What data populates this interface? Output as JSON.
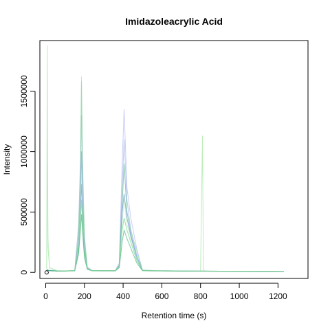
{
  "chart_data": {
    "type": "line",
    "title": "Imidazoleacrylic Acid",
    "xlabel": "Retention time (s)",
    "ylabel": "Intensity",
    "xlim": [
      -30,
      1355
    ],
    "ylim": [
      -50000,
      1920000
    ],
    "x_ticks": [
      0,
      200,
      400,
      600,
      800,
      1000,
      1200
    ],
    "x_tick_labels": [
      "0",
      "200",
      "400",
      "600",
      "800",
      "1000",
      "1200"
    ],
    "y_ticks": [
      0,
      500000,
      1000000,
      1500000
    ],
    "y_tick_labels": [
      "0",
      "500000",
      "1000000",
      "1500000"
    ],
    "grid": false,
    "legend": "none",
    "marker_point": {
      "x": 5,
      "y": 0
    },
    "series_style": {
      "colors": [
        "#9aa6ee",
        "#8aa0e6",
        "#3f6fc9",
        "#5a86d8",
        "#7fe07f",
        "#3fcc60",
        "#1a9e55",
        "#b0e8b0"
      ],
      "opacity": 0.55
    },
    "series": [
      {
        "color": "#9aa6ee",
        "x": [
          5,
          20,
          60,
          100,
          150,
          170,
          180,
          185,
          190,
          200,
          215,
          240,
          300,
          360,
          380,
          395,
          405,
          420,
          440,
          470,
          500,
          560,
          700,
          900,
          1100,
          1230
        ],
        "y": [
          20000,
          15000,
          12000,
          12000,
          15000,
          400000,
          950000,
          1580000,
          900000,
          300000,
          40000,
          15000,
          15000,
          15000,
          80000,
          900000,
          1350000,
          700000,
          450000,
          200000,
          20000,
          15000,
          12000,
          10000,
          10000,
          8000
        ]
      },
      {
        "color": "#8aa0e6",
        "x": [
          5,
          20,
          60,
          100,
          150,
          170,
          180,
          185,
          190,
          200,
          215,
          240,
          300,
          360,
          380,
          395,
          405,
          420,
          440,
          470,
          500,
          560,
          700,
          900,
          1100,
          1230
        ],
        "y": [
          25000,
          16000,
          13000,
          12000,
          16000,
          300000,
          800000,
          1300000,
          700000,
          250000,
          35000,
          16000,
          14000,
          14000,
          60000,
          700000,
          1100000,
          600000,
          350000,
          150000,
          18000,
          14000,
          12000,
          10000,
          9000,
          8000
        ]
      },
      {
        "color": "#3f6fc9",
        "x": [
          5,
          20,
          60,
          100,
          150,
          170,
          180,
          185,
          190,
          200,
          215,
          240,
          300,
          360,
          380,
          395,
          405,
          420,
          440,
          470,
          500,
          560,
          700,
          900,
          1100,
          1230
        ],
        "y": [
          18000,
          14000,
          12000,
          11000,
          14000,
          200000,
          550000,
          730000,
          500000,
          180000,
          30000,
          14000,
          13000,
          13000,
          50000,
          500000,
          650000,
          450000,
          300000,
          120000,
          16000,
          13000,
          11000,
          9000,
          9000,
          7000
        ]
      },
      {
        "color": "#5a86d8",
        "x": [
          5,
          20,
          60,
          100,
          150,
          170,
          180,
          185,
          190,
          200,
          215,
          240,
          300,
          360,
          380,
          395,
          405,
          420,
          440,
          470,
          500,
          560,
          700,
          900,
          1100,
          1230
        ],
        "y": [
          22000,
          15000,
          12000,
          12000,
          15000,
          250000,
          650000,
          1000000,
          600000,
          200000,
          32000,
          15000,
          14000,
          14000,
          55000,
          550000,
          900000,
          500000,
          320000,
          130000,
          17000,
          14000,
          12000,
          10000,
          9000,
          8000
        ]
      },
      {
        "color": "#7fe07f",
        "x": [
          5,
          8,
          12,
          20,
          60,
          100,
          150,
          170,
          180,
          185,
          190,
          200,
          215,
          240,
          300,
          360,
          380,
          395,
          405,
          420,
          440,
          470,
          500,
          560,
          700,
          800,
          810,
          815,
          830,
          900,
          1100,
          1230
        ],
        "y": [
          30000,
          1880000,
          200000,
          40000,
          15000,
          13000,
          16000,
          350000,
          900000,
          1620000,
          1000000,
          300000,
          45000,
          16000,
          15000,
          15000,
          70000,
          600000,
          900000,
          500000,
          350000,
          180000,
          20000,
          15000,
          12000,
          12000,
          1130000,
          15000,
          12000,
          10000,
          9000,
          8000
        ]
      },
      {
        "color": "#3fcc60",
        "x": [
          5,
          20,
          60,
          100,
          150,
          170,
          180,
          185,
          190,
          200,
          215,
          240,
          300,
          360,
          380,
          395,
          405,
          420,
          440,
          470,
          500,
          560,
          700,
          900,
          1100,
          1230
        ],
        "y": [
          20000,
          14000,
          12000,
          11000,
          14000,
          180000,
          450000,
          600000,
          420000,
          150000,
          28000,
          14000,
          13000,
          13000,
          45000,
          350000,
          450000,
          350000,
          250000,
          100000,
          15000,
          13000,
          11000,
          9000,
          9000,
          7000
        ]
      },
      {
        "color": "#1a9e55",
        "x": [
          5,
          20,
          60,
          100,
          150,
          170,
          180,
          185,
          190,
          200,
          215,
          240,
          300,
          360,
          380,
          395,
          405,
          420,
          440,
          470,
          500,
          560,
          700,
          900,
          1100,
          1230
        ],
        "y": [
          16000,
          13000,
          11000,
          11000,
          13000,
          150000,
          350000,
          480000,
          350000,
          120000,
          25000,
          13000,
          12000,
          12000,
          40000,
          250000,
          350000,
          280000,
          200000,
          80000,
          14000,
          12000,
          10000,
          9000,
          8000,
          7000
        ]
      },
      {
        "color": "#b0e8b0",
        "x": [
          5,
          8,
          12,
          20,
          60,
          100,
          150,
          170,
          180,
          185,
          190,
          200,
          215,
          240,
          300,
          360,
          380,
          395,
          405,
          420,
          440,
          470,
          500,
          560,
          700,
          900,
          1100,
          1230
        ],
        "y": [
          25000,
          900000,
          300000,
          30000,
          14000,
          12000,
          15000,
          220000,
          600000,
          850000,
          550000,
          180000,
          30000,
          14000,
          13000,
          13000,
          50000,
          400000,
          600000,
          400000,
          280000,
          120000,
          16000,
          13000,
          11000,
          9000,
          8000,
          7000
        ]
      }
    ]
  }
}
